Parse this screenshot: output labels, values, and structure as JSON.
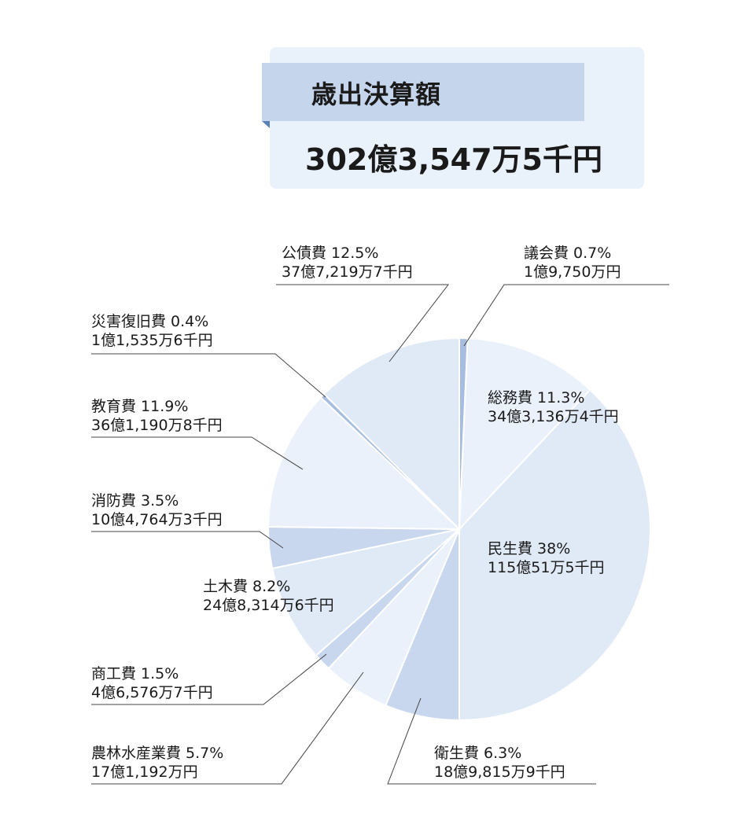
{
  "header": {
    "title": "歳出決算額",
    "total": "302億3,547万5千円"
  },
  "chart_data": {
    "type": "pie",
    "title": "歳出決算額",
    "total_label": "302億3,547万5千円",
    "slices": [
      {
        "name": "議会費",
        "percent": 0.7,
        "percent_label": "0.7%",
        "amount": "1億9,750万円",
        "color": "#a7bde0"
      },
      {
        "name": "総務費",
        "percent": 11.3,
        "percent_label": "11.3%",
        "amount": "34億3,136万4千円",
        "color": "#eaf1fb"
      },
      {
        "name": "民生費",
        "percent": 38,
        "percent_label": "38%",
        "amount": "115億51万5千円",
        "color": "#e0e9f6"
      },
      {
        "name": "衛生費",
        "percent": 6.3,
        "percent_label": "6.3%",
        "amount": "18億9,815万9千円",
        "color": "#c8d7ee"
      },
      {
        "name": "農林水産業費",
        "percent": 5.7,
        "percent_label": "5.7%",
        "amount": "17億1,192万円",
        "color": "#eaf1fb"
      },
      {
        "name": "商工費",
        "percent": 1.5,
        "percent_label": "1.5%",
        "amount": "4億6,576万7千円",
        "color": "#c8d7ee"
      },
      {
        "name": "土木費",
        "percent": 8.2,
        "percent_label": "8.2%",
        "amount": "24億8,314万6千円",
        "color": "#e0e9f6"
      },
      {
        "name": "消防費",
        "percent": 3.5,
        "percent_label": "3.5%",
        "amount": "10億4,764万3千円",
        "color": "#c8d7ee"
      },
      {
        "name": "教育費",
        "percent": 11.9,
        "percent_label": "11.9%",
        "amount": "36億1,190万8千円",
        "color": "#eaf1fb"
      },
      {
        "name": "災害復旧費",
        "percent": 0.4,
        "percent_label": "0.4%",
        "amount": "1億1,535万6千円",
        "color": "#a7bde0"
      },
      {
        "name": "公債費",
        "percent": 12.5,
        "percent_label": "12.5%",
        "amount": "37億7,219万7千円",
        "color": "#e0e9f6"
      }
    ],
    "legend": "none"
  }
}
